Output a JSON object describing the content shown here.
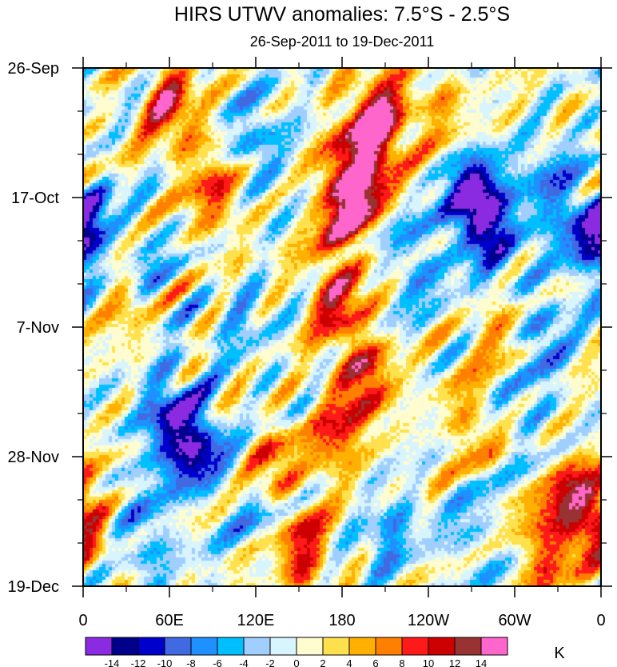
{
  "chart_data": {
    "type": "heatmap",
    "title": "HIRS UTWV anomalies: 7.5°S - 2.5°S",
    "subtitle": "26-Sep-2011 to 19-Dec-2011",
    "x_axis": {
      "ticks": [
        "0",
        "60E",
        "120E",
        "180",
        "120W",
        "60W",
        "0"
      ],
      "range_deg": [
        0,
        360
      ]
    },
    "y_axis": {
      "ticks": [
        "26-Sep",
        "17-Oct",
        "7-Nov",
        "28-Nov",
        "19-Dec"
      ],
      "range": [
        "26-Sep-2011",
        "19-Dec-2011"
      ],
      "direction": "time increases downward"
    },
    "colorbar": {
      "unit": "K",
      "labels": [
        "-14",
        "-12",
        "-10",
        "-8",
        "-6",
        "-4",
        "-2",
        "0",
        "2",
        "4",
        "6",
        "8",
        "10",
        "12",
        "14"
      ],
      "colors": [
        "#8a2be2",
        "#00008b",
        "#0000cd",
        "#4169e1",
        "#1e90ff",
        "#00bfff",
        "#a0cfff",
        "#d8f4ff",
        "#fffdd0",
        "#ffe14d",
        "#ffb000",
        "#ff7f00",
        "#ff1a1a",
        "#cc0000",
        "#993333",
        "#ff66cc"
      ]
    },
    "anomaly_features": [
      {
        "lon": 205,
        "day": 25,
        "value": 14
      },
      {
        "lon": 190,
        "day": 50,
        "value": 12
      },
      {
        "lon": 180,
        "day": 68,
        "value": 10
      },
      {
        "lon": 175,
        "day": 110,
        "value": 10
      },
      {
        "lon": 195,
        "day": 150,
        "value": 10
      },
      {
        "lon": 175,
        "day": 180,
        "value": 8
      },
      {
        "lon": 130,
        "day": 195,
        "value": 8
      },
      {
        "lon": 60,
        "day": 18,
        "value": 10
      },
      {
        "lon": 90,
        "day": 60,
        "value": 8
      },
      {
        "lon": 28,
        "day": 105,
        "value": 10
      },
      {
        "lon": 295,
        "day": 135,
        "value": 8
      },
      {
        "lon": 340,
        "day": 210,
        "value": 10
      },
      {
        "lon": 320,
        "day": 235,
        "value": 8
      },
      {
        "lon": 0,
        "day": 220,
        "value": 8
      },
      {
        "lon": 250,
        "day": 25,
        "value": 6
      },
      {
        "lon": 270,
        "day": 170,
        "value": 6
      },
      {
        "lon": 150,
        "day": 235,
        "value": 10
      },
      {
        "lon": 280,
        "day": 75,
        "value": -14
      },
      {
        "lon": 265,
        "day": 55,
        "value": -10
      },
      {
        "lon": 230,
        "day": 95,
        "value": -6
      },
      {
        "lon": 60,
        "day": 172,
        "value": -12
      },
      {
        "lon": 80,
        "day": 185,
        "value": -10
      },
      {
        "lon": 40,
        "day": 100,
        "value": -8
      },
      {
        "lon": 120,
        "day": 35,
        "value": -6
      },
      {
        "lon": 5,
        "day": 80,
        "value": -8
      },
      {
        "lon": 355,
        "day": 85,
        "value": -8
      },
      {
        "lon": 325,
        "day": 60,
        "value": -8
      },
      {
        "lon": 315,
        "day": 130,
        "value": -8
      },
      {
        "lon": 300,
        "day": 160,
        "value": -6
      },
      {
        "lon": 125,
        "day": 215,
        "value": -6
      },
      {
        "lon": 210,
        "day": 225,
        "value": -6
      },
      {
        "lon": 40,
        "day": 225,
        "value": -6
      },
      {
        "lon": 270,
        "day": 225,
        "value": -4
      },
      {
        "lon": 110,
        "day": 125,
        "value": -4
      }
    ]
  }
}
